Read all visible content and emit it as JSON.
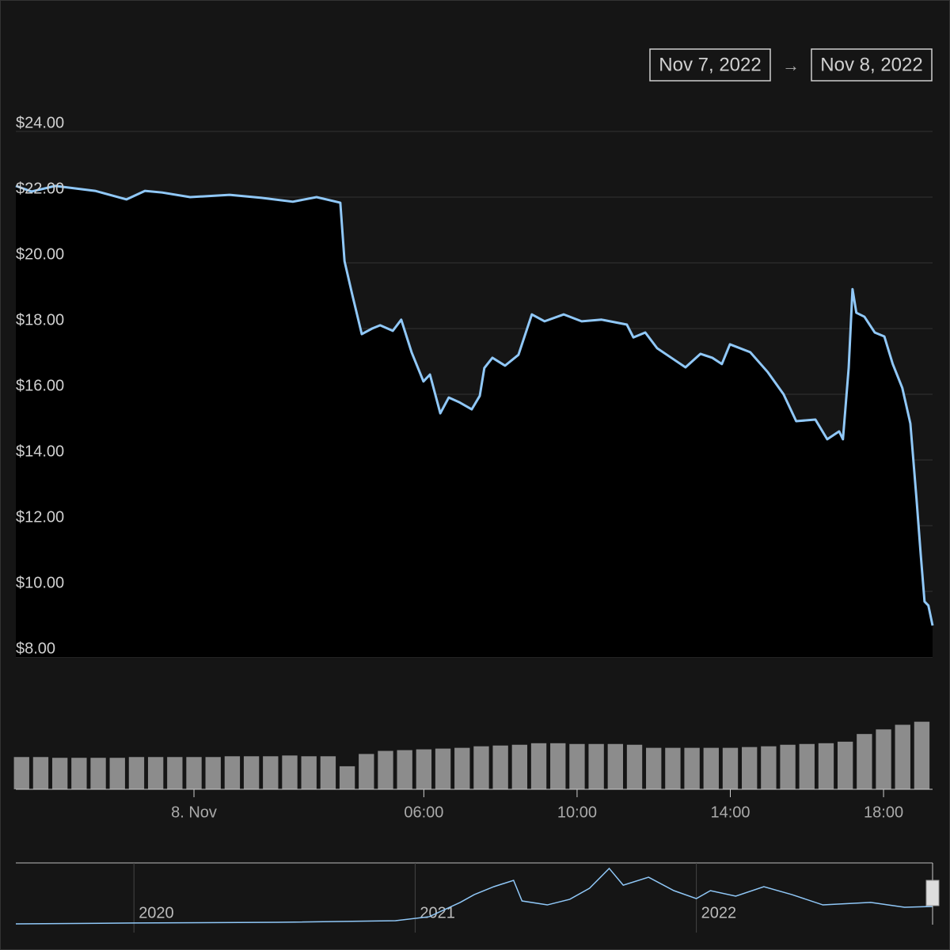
{
  "range_selector": {
    "from": "Nov 7, 2022",
    "separator": "→",
    "to": "Nov 8, 2022"
  },
  "chart_data": [
    {
      "type": "area",
      "color": "#90c8f8",
      "grid": true,
      "x": [
        -4.65,
        -4.24,
        -3.62,
        -2.58,
        -1.76,
        -1.28,
        -0.83,
        -0.1,
        0.93,
        1.76,
        2.58,
        3.2,
        3.82,
        3.93,
        4.13,
        4.38,
        4.65,
        4.86,
        5.19,
        5.41,
        5.68,
        5.99,
        6.16,
        6.43,
        6.65,
        6.92,
        7.25,
        7.46,
        7.58,
        7.79,
        8.12,
        8.47,
        8.82,
        9.15,
        9.65,
        10.12,
        10.64,
        11.3,
        11.47,
        11.78,
        12.09,
        12.46,
        12.83,
        13.22,
        13.53,
        13.78,
        13.99,
        14.52,
        14.98,
        15.39,
        15.72,
        16.22,
        16.53,
        16.84,
        16.94,
        17.09,
        17.19,
        17.29,
        17.5,
        17.77,
        18.02,
        18.24,
        18.49,
        18.7,
        18.86,
        18.97,
        19.07,
        19.17,
        19.28
      ],
      "values": [
        22.34,
        22.17,
        22.34,
        22.19,
        21.93,
        22.19,
        22.14,
        22.0,
        22.07,
        21.98,
        21.86,
        22.0,
        21.83,
        20.05,
        19.04,
        17.83,
        18.0,
        18.1,
        17.93,
        18.27,
        17.28,
        16.39,
        16.6,
        15.42,
        15.9,
        15.76,
        15.54,
        15.95,
        16.8,
        17.11,
        16.87,
        17.2,
        18.43,
        18.22,
        18.43,
        18.22,
        18.27,
        18.12,
        17.73,
        17.88,
        17.4,
        17.11,
        16.82,
        17.23,
        17.11,
        16.92,
        17.52,
        17.28,
        16.67,
        16.0,
        15.18,
        15.23,
        14.63,
        14.87,
        14.63,
        16.8,
        19.2,
        18.48,
        18.36,
        17.88,
        17.76,
        16.92,
        16.19,
        15.11,
        12.82,
        11.13,
        9.69,
        9.57,
        8.96
      ],
      "xlim": [
        -4.65,
        19.28
      ],
      "ylim": [
        8,
        24
      ],
      "yticks": [
        {
          "value": 8,
          "label": "$8.00"
        },
        {
          "value": 10,
          "label": "$10.00"
        },
        {
          "value": 12,
          "label": "$12.00"
        },
        {
          "value": 14,
          "label": "$14.00"
        },
        {
          "value": 16,
          "label": "$16.00"
        },
        {
          "value": 18,
          "label": "$18.00"
        },
        {
          "value": 20,
          "label": "$20.00"
        },
        {
          "value": 22,
          "label": "$22.00"
        },
        {
          "value": 24,
          "label": "$24.00"
        }
      ]
    },
    {
      "type": "bar",
      "color": "#8c8c8c",
      "x": [
        -4.5,
        -4,
        -3.5,
        -3,
        -2.5,
        -2,
        -1.5,
        -1,
        -0.5,
        0,
        0.5,
        1,
        1.5,
        2,
        2.5,
        3,
        3.5,
        4,
        4.5,
        5,
        5.5,
        6,
        6.5,
        7,
        7.5,
        8,
        8.5,
        9,
        9.5,
        10,
        10.5,
        11,
        11.5,
        12,
        12.5,
        13,
        13.5,
        14,
        14.5,
        15,
        15.5,
        16,
        16.5,
        17,
        17.5,
        18,
        18.5,
        19
      ],
      "values": [
        42,
        42,
        41,
        41,
        41,
        41,
        42,
        42,
        42,
        42,
        42,
        43,
        43,
        43,
        44,
        43,
        43,
        30,
        46,
        50,
        51,
        52,
        53,
        54,
        56,
        57,
        58,
        60,
        60,
        59,
        59,
        59,
        58,
        54,
        54,
        54,
        54,
        54,
        55,
        56,
        58,
        59,
        60,
        62,
        72,
        78,
        84,
        88
      ],
      "xlim": [
        -4.65,
        19.28
      ],
      "ylim": [
        0,
        100
      ],
      "xticks": [
        {
          "value": 0,
          "label": "8. Nov"
        },
        {
          "value": 6,
          "label": "06:00"
        },
        {
          "value": 10,
          "label": "10:00"
        },
        {
          "value": 14,
          "label": "14:00"
        },
        {
          "value": 18,
          "label": "18:00"
        }
      ]
    },
    {
      "type": "line",
      "color": "#90c8f8",
      "x": [
        2019.58,
        2020.0,
        2020.51,
        2020.93,
        2021.05,
        2021.16,
        2021.21,
        2021.28,
        2021.35,
        2021.38,
        2021.47,
        2021.55,
        2021.62,
        2021.69,
        2021.74,
        2021.83,
        2021.92,
        2022.0,
        2022.05,
        2022.14,
        2022.24,
        2022.34,
        2022.45,
        2022.62,
        2022.74,
        2022.84
      ],
      "values": [
        0.6,
        1.2,
        1.7,
        2.9,
        5.8,
        16.2,
        21.9,
        27.7,
        32.3,
        17.3,
        14.4,
        18.5,
        26.5,
        41.0,
        28.8,
        34.6,
        24.8,
        19.0,
        24.8,
        20.8,
        27.7,
        21.9,
        14.4,
        16.2,
        12.7,
        13.3
      ],
      "xlim": [
        2019.58,
        2022.84
      ],
      "ylim": [
        0,
        45
      ],
      "xticks": [
        2020,
        2021,
        2022
      ]
    }
  ]
}
